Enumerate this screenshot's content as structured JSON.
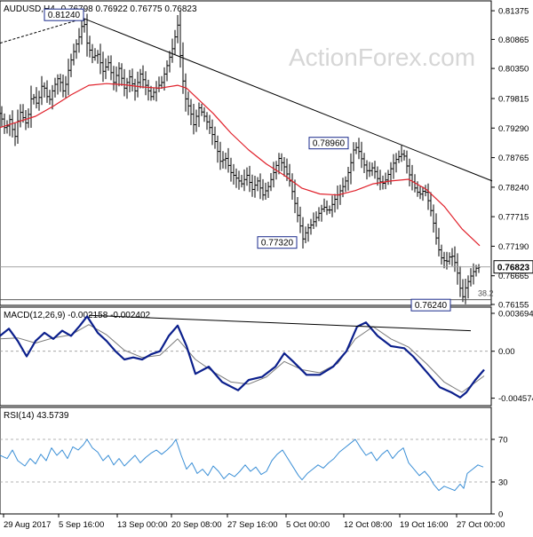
{
  "header": {
    "symbol": "AUDUSD,H4",
    "ohlc": "0.76798 0.76922 0.76775 0.76823"
  },
  "watermark": "ActionForex.com",
  "colors": {
    "candle": "#000000",
    "ma": "#e0202a",
    "macd_main": "#0b1f8c",
    "macd_signal": "#7a7a7a",
    "rsi": "#3b8fd6",
    "trendline": "#000000",
    "grid": "#9a9a9a",
    "axis_text": "#000000",
    "watermark": "#d6d6d6"
  },
  "chart_data": [
    {
      "type": "candlestick",
      "title": "AUDUSD,H4",
      "ohlc_text": "0.76798 0.76922 0.76775 0.76823",
      "ylim": [
        0.7614,
        0.8155
      ],
      "y_ticks": [
        "0.81375",
        "0.80865",
        "0.80350",
        "0.79815",
        "0.79290",
        "0.78765",
        "0.78240",
        "0.77715",
        "0.77190",
        "0.76665",
        "0.76155"
      ],
      "current_price_label": "0.76823",
      "current_price": 0.76823,
      "fib_level_label": "38.2",
      "fib_level": 0.7624,
      "x_tick_labels": [
        "29 Aug 2017",
        "5 Sep 16:00",
        "13 Sep 00:00",
        "20 Sep 08:00",
        "27 Sep 16:00",
        "5 Oct 00:00",
        "12 Oct 08:00",
        "19 Oct 16:00",
        "27 Oct 00:00"
      ],
      "annotations": [
        {
          "label": "0.81240",
          "value": 0.8124
        },
        {
          "label": "0.78960",
          "value": 0.7896
        },
        {
          "label": "0.77320",
          "value": 0.7732
        },
        {
          "label": "0.76240",
          "value": 0.7624
        }
      ],
      "price_path": [
        [
          0,
          0.7955
        ],
        [
          6,
          0.7925
        ],
        [
          12,
          0.7948
        ],
        [
          16,
          0.7905
        ],
        [
          22,
          0.796
        ],
        [
          30,
          0.7935
        ],
        [
          36,
          0.799
        ],
        [
          42,
          0.797
        ],
        [
          48,
          0.801
        ],
        [
          55,
          0.7975
        ],
        [
          60,
          0.8
        ],
        [
          66,
          0.802
        ],
        [
          72,
          0.799
        ],
        [
          78,
          0.804
        ],
        [
          84,
          0.807
        ],
        [
          90,
          0.8095
        ],
        [
          94,
          0.8124
        ],
        [
          98,
          0.808
        ],
        [
          104,
          0.8055
        ],
        [
          110,
          0.806
        ],
        [
          116,
          0.803
        ],
        [
          122,
          0.8045
        ],
        [
          128,
          0.801
        ],
        [
          134,
          0.8035
        ],
        [
          140,
          0.8
        ],
        [
          146,
          0.802
        ],
        [
          152,
          0.7995
        ],
        [
          158,
          0.8025
        ],
        [
          164,
          0.8005
        ],
        [
          170,
          0.7985
        ],
        [
          176,
          0.8
        ],
        [
          182,
          0.801
        ],
        [
          188,
          0.804
        ],
        [
          194,
          0.807
        ],
        [
          200,
          0.8112
        ],
        [
          204,
          0.804
        ],
        [
          208,
          0.7985
        ],
        [
          214,
          0.796
        ],
        [
          218,
          0.7935
        ],
        [
          224,
          0.7965
        ],
        [
          230,
          0.795
        ],
        [
          236,
          0.793
        ],
        [
          242,
          0.7905
        ],
        [
          248,
          0.787
        ],
        [
          254,
          0.7875
        ],
        [
          260,
          0.785
        ],
        [
          266,
          0.784
        ],
        [
          272,
          0.783
        ],
        [
          278,
          0.7845
        ],
        [
          284,
          0.782
        ],
        [
          290,
          0.7835
        ],
        [
          296,
          0.781
        ],
        [
          302,
          0.7825
        ],
        [
          308,
          0.785
        ],
        [
          314,
          0.7875
        ],
        [
          320,
          0.786
        ],
        [
          326,
          0.7835
        ],
        [
          330,
          0.781
        ],
        [
          334,
          0.778
        ],
        [
          338,
          0.7755
        ],
        [
          341,
          0.7732
        ],
        [
          346,
          0.775
        ],
        [
          352,
          0.776
        ],
        [
          358,
          0.7775
        ],
        [
          364,
          0.779
        ],
        [
          370,
          0.778
        ],
        [
          376,
          0.78
        ],
        [
          382,
          0.7815
        ],
        [
          388,
          0.783
        ],
        [
          394,
          0.786
        ],
        [
          398,
          0.789
        ],
        [
          402,
          0.7896
        ],
        [
          408,
          0.787
        ],
        [
          414,
          0.785
        ],
        [
          420,
          0.786
        ],
        [
          426,
          0.7835
        ],
        [
          432,
          0.783
        ],
        [
          438,
          0.785
        ],
        [
          444,
          0.787
        ],
        [
          450,
          0.788
        ],
        [
          454,
          0.7885
        ],
        [
          460,
          0.785
        ],
        [
          466,
          0.7825
        ],
        [
          472,
          0.781
        ],
        [
          478,
          0.782
        ],
        [
          484,
          0.779
        ],
        [
          488,
          0.776
        ],
        [
          492,
          0.7725
        ],
        [
          496,
          0.77
        ],
        [
          502,
          0.769
        ],
        [
          508,
          0.7705
        ],
        [
          512,
          0.769
        ],
        [
          516,
          0.7665
        ],
        [
          520,
          0.7624
        ],
        [
          524,
          0.7645
        ],
        [
          528,
          0.766
        ],
        [
          532,
          0.7672
        ],
        [
          536,
          0.768
        ],
        [
          540,
          0.7682
        ]
      ],
      "ma_path": [
        [
          0,
          0.793
        ],
        [
          20,
          0.794
        ],
        [
          40,
          0.795
        ],
        [
          60,
          0.7968
        ],
        [
          80,
          0.7988
        ],
        [
          100,
          0.8005
        ],
        [
          120,
          0.8008
        ],
        [
          140,
          0.8006
        ],
        [
          160,
          0.8002
        ],
        [
          180,
          0.8
        ],
        [
          200,
          0.8005
        ],
        [
          210,
          0.8
        ],
        [
          220,
          0.7985
        ],
        [
          240,
          0.7955
        ],
        [
          260,
          0.792
        ],
        [
          280,
          0.789
        ],
        [
          300,
          0.7865
        ],
        [
          320,
          0.7845
        ],
        [
          340,
          0.7822
        ],
        [
          360,
          0.7812
        ],
        [
          380,
          0.781
        ],
        [
          400,
          0.7818
        ],
        [
          420,
          0.783
        ],
        [
          440,
          0.7835
        ],
        [
          460,
          0.7838
        ],
        [
          480,
          0.782
        ],
        [
          500,
          0.779
        ],
        [
          520,
          0.775
        ],
        [
          540,
          0.772
        ]
      ],
      "trendlines": [
        {
          "from": [
            0,
            0.808
          ],
          "to": [
            94,
            0.8124
          ]
        },
        {
          "from": [
            94,
            0.8124
          ],
          "to": [
            554,
            0.7835
          ]
        }
      ]
    },
    {
      "type": "line",
      "title": "MACD(12,26,9) -0.002158 -0.002402",
      "ylim": [
        -0.0053,
        0.0043
      ],
      "y_ticks": [
        "0.003694",
        "0.00",
        "-0.004574"
      ],
      "zero_line": 0,
      "main": [
        [
          0,
          0.0015
        ],
        [
          10,
          0.0022
        ],
        [
          20,
          0.001
        ],
        [
          30,
          -0.0005
        ],
        [
          40,
          0.001
        ],
        [
          50,
          0.0018
        ],
        [
          60,
          0.0012
        ],
        [
          70,
          0.002
        ],
        [
          80,
          0.0015
        ],
        [
          90,
          0.0025
        ],
        [
          98,
          0.0034
        ],
        [
          110,
          0.0018
        ],
        [
          120,
          0.001
        ],
        [
          130,
          0.0
        ],
        [
          140,
          -0.0008
        ],
        [
          150,
          -0.0006
        ],
        [
          160,
          -0.0008
        ],
        [
          170,
          -0.0003
        ],
        [
          180,
          0.0
        ],
        [
          190,
          0.0015
        ],
        [
          200,
          0.0025
        ],
        [
          210,
          0.0005
        ],
        [
          220,
          -0.0022
        ],
        [
          235,
          -0.0015
        ],
        [
          250,
          -0.003
        ],
        [
          268,
          -0.0038
        ],
        [
          280,
          -0.0028
        ],
        [
          295,
          -0.0025
        ],
        [
          310,
          -0.0015
        ],
        [
          320,
          -0.0002
        ],
        [
          330,
          -0.001
        ],
        [
          345,
          -0.0023
        ],
        [
          360,
          -0.0023
        ],
        [
          375,
          -0.0015
        ],
        [
          390,
          0.0
        ],
        [
          402,
          0.0024
        ],
        [
          412,
          0.0028
        ],
        [
          425,
          0.0015
        ],
        [
          440,
          0.0005
        ],
        [
          455,
          0.0003
        ],
        [
          465,
          -0.0005
        ],
        [
          480,
          -0.002
        ],
        [
          495,
          -0.0035
        ],
        [
          508,
          -0.004
        ],
        [
          518,
          -0.0045
        ],
        [
          525,
          -0.004
        ],
        [
          535,
          -0.0028
        ],
        [
          545,
          -0.0018
        ]
      ],
      "signal": [
        [
          0,
          0.0012
        ],
        [
          20,
          0.0013
        ],
        [
          40,
          0.0008
        ],
        [
          60,
          0.0013
        ],
        [
          80,
          0.0016
        ],
        [
          100,
          0.0026
        ],
        [
          120,
          0.0016
        ],
        [
          140,
          0.0001
        ],
        [
          160,
          -0.0006
        ],
        [
          180,
          -0.0004
        ],
        [
          200,
          0.0012
        ],
        [
          220,
          -0.0008
        ],
        [
          240,
          -0.002
        ],
        [
          260,
          -0.003
        ],
        [
          280,
          -0.0032
        ],
        [
          300,
          -0.0025
        ],
        [
          320,
          -0.001
        ],
        [
          340,
          -0.0018
        ],
        [
          360,
          -0.0021
        ],
        [
          380,
          -0.0012
        ],
        [
          400,
          0.0012
        ],
        [
          420,
          0.0024
        ],
        [
          440,
          0.0012
        ],
        [
          460,
          0.0004
        ],
        [
          480,
          -0.0012
        ],
        [
          500,
          -0.003
        ],
        [
          520,
          -0.004
        ],
        [
          545,
          -0.0024
        ]
      ],
      "trendline": {
        "from": [
          100,
          0.0035
        ],
        "to": [
          530,
          0.002
        ]
      }
    },
    {
      "type": "line",
      "title": "RSI(14) 43.5739",
      "ylim": [
        0,
        100
      ],
      "y_ticks": [
        "70",
        "30",
        "0"
      ],
      "levels": [
        70,
        30
      ],
      "values": [
        [
          0,
          55
        ],
        [
          8,
          52
        ],
        [
          14,
          60
        ],
        [
          20,
          50
        ],
        [
          28,
          45
        ],
        [
          34,
          52
        ],
        [
          40,
          47
        ],
        [
          46,
          56
        ],
        [
          52,
          50
        ],
        [
          58,
          62
        ],
        [
          64,
          55
        ],
        [
          70,
          60
        ],
        [
          76,
          52
        ],
        [
          82,
          63
        ],
        [
          88,
          60
        ],
        [
          94,
          65
        ],
        [
          98,
          70
        ],
        [
          104,
          62
        ],
        [
          110,
          58
        ],
        [
          116,
          50
        ],
        [
          122,
          55
        ],
        [
          128,
          46
        ],
        [
          134,
          52
        ],
        [
          140,
          45
        ],
        [
          146,
          50
        ],
        [
          152,
          55
        ],
        [
          158,
          48
        ],
        [
          164,
          53
        ],
        [
          170,
          57
        ],
        [
          176,
          60
        ],
        [
          182,
          56
        ],
        [
          188,
          60
        ],
        [
          194,
          65
        ],
        [
          198,
          70
        ],
        [
          204,
          55
        ],
        [
          210,
          42
        ],
        [
          216,
          48
        ],
        [
          222,
          38
        ],
        [
          228,
          42
        ],
        [
          234,
          36
        ],
        [
          240,
          45
        ],
        [
          246,
          40
        ],
        [
          252,
          33
        ],
        [
          258,
          38
        ],
        [
          264,
          35
        ],
        [
          270,
          40
        ],
        [
          276,
          46
        ],
        [
          282,
          40
        ],
        [
          288,
          44
        ],
        [
          294,
          37
        ],
        [
          300,
          40
        ],
        [
          306,
          50
        ],
        [
          312,
          56
        ],
        [
          318,
          60
        ],
        [
          324,
          52
        ],
        [
          330,
          44
        ],
        [
          336,
          36
        ],
        [
          340,
          32
        ],
        [
          346,
          38
        ],
        [
          352,
          42
        ],
        [
          358,
          46
        ],
        [
          364,
          43
        ],
        [
          370,
          48
        ],
        [
          376,
          52
        ],
        [
          382,
          58
        ],
        [
          388,
          62
        ],
        [
          394,
          66
        ],
        [
          400,
          70
        ],
        [
          406,
          62
        ],
        [
          412,
          55
        ],
        [
          418,
          58
        ],
        [
          424,
          50
        ],
        [
          430,
          56
        ],
        [
          436,
          60
        ],
        [
          442,
          52
        ],
        [
          448,
          58
        ],
        [
          454,
          62
        ],
        [
          460,
          48
        ],
        [
          466,
          42
        ],
        [
          472,
          36
        ],
        [
          478,
          40
        ],
        [
          484,
          34
        ],
        [
          488,
          28
        ],
        [
          494,
          22
        ],
        [
          500,
          26
        ],
        [
          506,
          24
        ],
        [
          512,
          22
        ],
        [
          518,
          28
        ],
        [
          522,
          24
        ],
        [
          526,
          38
        ],
        [
          532,
          42
        ],
        [
          538,
          46
        ],
        [
          544,
          44
        ]
      ]
    }
  ]
}
